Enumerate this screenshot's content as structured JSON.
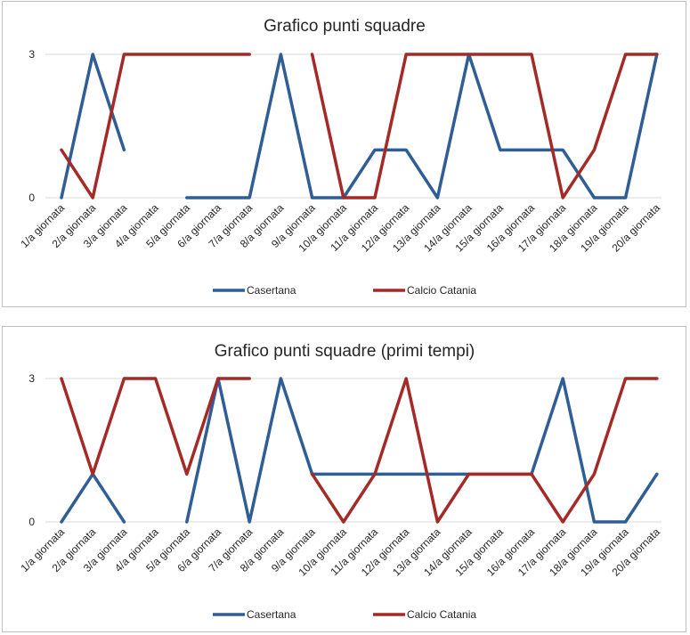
{
  "chart_data": [
    {
      "type": "line",
      "title": "Grafico punti squadre",
      "categories": [
        "1/a giornata",
        "2/a giornata",
        "3/a giornata",
        "4/a giornata",
        "5/a giornata",
        "6/a giornata",
        "7/a giornata",
        "8/a giornata",
        "9/a giornata",
        "10/a giornata",
        "11/a giornata",
        "12/a giornata",
        "13/a giornata",
        "14/a giornata",
        "15/a giornata",
        "16/a giornata",
        "17/a giornata",
        "18/a giornata",
        "19/a giornata",
        "20/a giornata"
      ],
      "yticks": [
        0,
        3
      ],
      "ylim": [
        0,
        3
      ],
      "legend_position": "bottom",
      "series": [
        {
          "name": "Casertana",
          "color": "#2e5e95",
          "values": [
            0,
            3,
            1,
            null,
            0,
            0,
            0,
            3,
            0,
            0,
            1,
            1,
            0,
            3,
            1,
            1,
            1,
            0,
            0,
            3
          ]
        },
        {
          "name": "Calcio Catania",
          "color": "#a42a27",
          "values": [
            1,
            0,
            3,
            3,
            3,
            3,
            3,
            null,
            3,
            0,
            0,
            3,
            3,
            3,
            3,
            3,
            0,
            1,
            3,
            3
          ]
        }
      ]
    },
    {
      "type": "line",
      "title": "Grafico punti squadre (primi tempi)",
      "categories": [
        "1/a giornata",
        "2/a giornata",
        "3/a giornata",
        "4/a giornata",
        "5/a giornata",
        "6/a giornata",
        "7/a giornata",
        "8/a giornata",
        "9/a giornata",
        "10/a giornata",
        "11/a giornata",
        "12/a giornata",
        "13/a giornata",
        "14/a giornata",
        "15/a giornata",
        "16/a giornata",
        "17/a giornata",
        "18/a giornata",
        "19/a giornata",
        "20/a giornata"
      ],
      "yticks": [
        0,
        3
      ],
      "ylim": [
        0,
        3
      ],
      "legend_position": "bottom",
      "series": [
        {
          "name": "Casertana",
          "color": "#2e5e95",
          "values": [
            0,
            1,
            0,
            null,
            0,
            3,
            0,
            3,
            1,
            1,
            1,
            1,
            1,
            1,
            1,
            1,
            3,
            0,
            0,
            1
          ]
        },
        {
          "name": "Calcio Catania",
          "color": "#a42a27",
          "values": [
            3,
            1,
            3,
            3,
            1,
            3,
            3,
            null,
            1,
            0,
            1,
            3,
            0,
            1,
            1,
            1,
            0,
            1,
            3,
            3
          ]
        }
      ]
    }
  ]
}
